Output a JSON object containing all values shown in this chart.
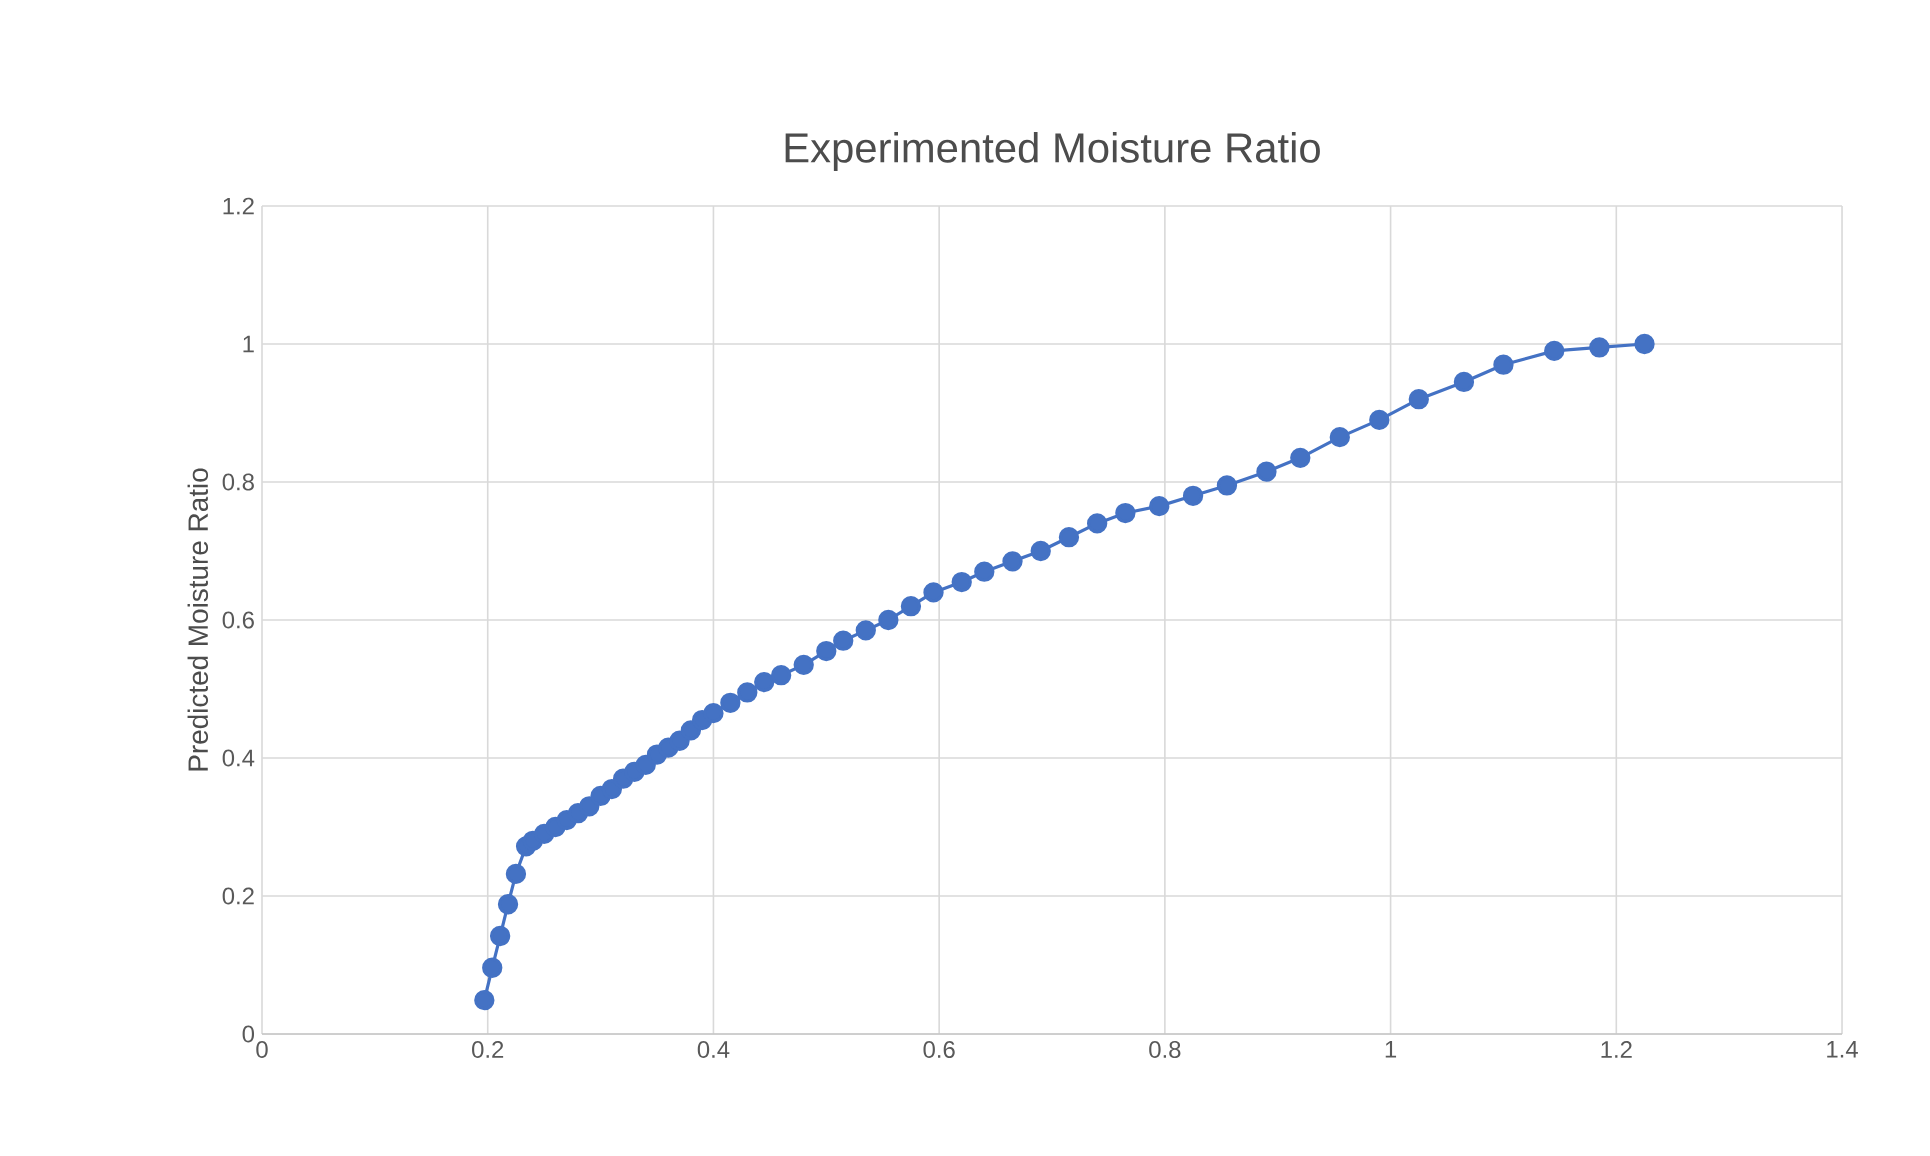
{
  "chart_data": {
    "type": "line",
    "title": "Experimented Moisture Ratio",
    "ylabel": "Predicted Moisture Ratio",
    "marker": "circle",
    "grid": true,
    "xlim": [
      0,
      1.4
    ],
    "xticks": [
      0,
      0.2,
      0.4,
      0.6,
      0.8,
      1,
      1.2,
      1.4
    ],
    "ylim": [
      0,
      1.2
    ],
    "yticks": [
      0,
      0.2,
      0.4,
      0.6,
      0.8,
      1,
      1.2
    ],
    "series": [
      {
        "color": "#4472c4",
        "x": [
          0.197,
          0.204,
          0.211,
          0.218,
          0.225,
          0.234,
          0.24,
          0.25,
          0.26,
          0.27,
          0.28,
          0.29,
          0.3,
          0.31,
          0.32,
          0.33,
          0.34,
          0.35,
          0.36,
          0.37,
          0.38,
          0.39,
          0.4,
          0.415,
          0.43,
          0.445,
          0.46,
          0.48,
          0.5,
          0.515,
          0.535,
          0.555,
          0.575,
          0.595,
          0.62,
          0.64,
          0.665,
          0.69,
          0.715,
          0.74,
          0.765,
          0.795,
          0.825,
          0.855,
          0.89,
          0.92,
          0.955,
          0.99,
          1.025,
          1.065,
          1.1,
          1.145,
          1.185,
          1.225
        ],
        "values": [
          0.049,
          0.096,
          0.142,
          0.188,
          0.232,
          0.272,
          0.28,
          0.29,
          0.3,
          0.31,
          0.32,
          0.33,
          0.345,
          0.355,
          0.37,
          0.38,
          0.39,
          0.405,
          0.415,
          0.425,
          0.44,
          0.455,
          0.465,
          0.48,
          0.495,
          0.51,
          0.52,
          0.535,
          0.555,
          0.57,
          0.585,
          0.6,
          0.62,
          0.64,
          0.655,
          0.67,
          0.685,
          0.7,
          0.72,
          0.74,
          0.755,
          0.765,
          0.78,
          0.795,
          0.815,
          0.835,
          0.865,
          0.89,
          0.92,
          0.945,
          0.97,
          0.99,
          0.995,
          1.0
        ]
      }
    ]
  }
}
